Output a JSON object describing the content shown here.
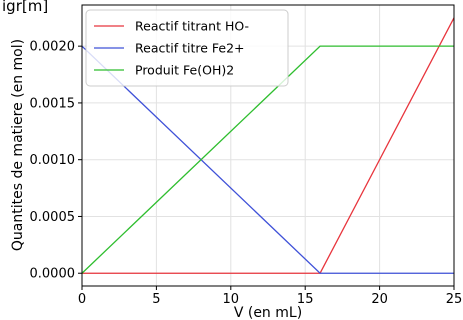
{
  "top_fragment": "igr[m]",
  "chart_data": {
    "type": "line",
    "xlabel": "V (en mL)",
    "ylabel": "Quantites de matiere (en mol)",
    "xlim": [
      0,
      25
    ],
    "ylim": [
      -0.0001125,
      0.0023625
    ],
    "xticks": [
      0,
      5,
      10,
      15,
      20,
      25
    ],
    "xtick_labels": [
      "0",
      "5",
      "10",
      "15",
      "20",
      "25"
    ],
    "yticks": [
      0.0,
      0.0005,
      0.001,
      0.0015,
      0.002
    ],
    "ytick_labels": [
      "0.0000",
      "0.0005",
      "0.0010",
      "0.0015",
      "0.0020"
    ],
    "grid": true,
    "legend_position": "top-left",
    "series": [
      {
        "name": "Reactif titrant HO-",
        "color": "#e8353d",
        "x": [
          0,
          16,
          25
        ],
        "y": [
          0,
          0,
          0.00225
        ]
      },
      {
        "name": "Reactif titre Fe2+",
        "color": "#3f51d8",
        "x": [
          0,
          16,
          25
        ],
        "y": [
          0.002,
          0,
          0
        ]
      },
      {
        "name": "Produit Fe(OH)2",
        "color": "#2fbe2f",
        "x": [
          0,
          16,
          25
        ],
        "y": [
          0,
          0.002,
          0.002
        ]
      }
    ]
  }
}
